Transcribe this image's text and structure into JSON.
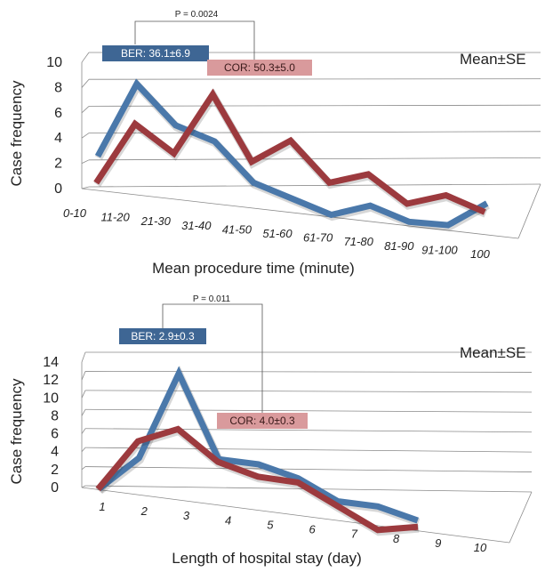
{
  "chart_data": [
    {
      "type": "line",
      "view": "3d-perspective",
      "xlabel": "Mean procedure time (minute)",
      "ylabel": "Case  frequency",
      "ylim": [
        0,
        10
      ],
      "yticks": [
        "0",
        "2",
        "4",
        "6",
        "8",
        "10"
      ],
      "categories": [
        "0-10",
        "11-20",
        "21-30",
        "31-40",
        "41-50",
        "51-60",
        "61-70",
        "71-80",
        "81-90",
        "91-100",
        "100"
      ],
      "legend_note": "Mean±SE",
      "p_value": "P = 0.0024",
      "series": [
        {
          "name": "BER",
          "summary": "BER: 36.1±6.9",
          "color": "#4a78aa",
          "values": [
            3,
            9,
            6,
            5,
            2,
            1,
            0,
            1,
            0,
            0,
            2
          ]
        },
        {
          "name": "COR",
          "summary": "COR: 50.3±5.0",
          "color": "#9c3a3e",
          "values": [
            1,
            6,
            4,
            9,
            4,
            6,
            3,
            4,
            2,
            3,
            2
          ]
        }
      ]
    },
    {
      "type": "line",
      "view": "3d-perspective",
      "xlabel": "Length of hospital stay (day)",
      "ylabel": "Case frequency",
      "ylim": [
        0,
        14
      ],
      "yticks": [
        "0",
        "2",
        "4",
        "6",
        "8",
        "10",
        "12",
        "14"
      ],
      "categories": [
        "1",
        "2",
        "3",
        "4",
        "5",
        "6",
        "7",
        "8",
        "9",
        "10"
      ],
      "legend_note": "Mean±SE",
      "p_value": "P = 0.011",
      "series": [
        {
          "name": "BER",
          "summary": "BER: 2.9±0.3",
          "color": "#4a78aa",
          "values": [
            0,
            4,
            14,
            5,
            5,
            4,
            2,
            2,
            1,
            null
          ]
        },
        {
          "name": "COR",
          "summary": "COR: 4.0±0.3",
          "color": "#9c3a3e",
          "values": [
            0,
            6,
            8,
            5,
            4,
            4,
            2,
            0,
            1,
            null
          ]
        }
      ]
    }
  ]
}
